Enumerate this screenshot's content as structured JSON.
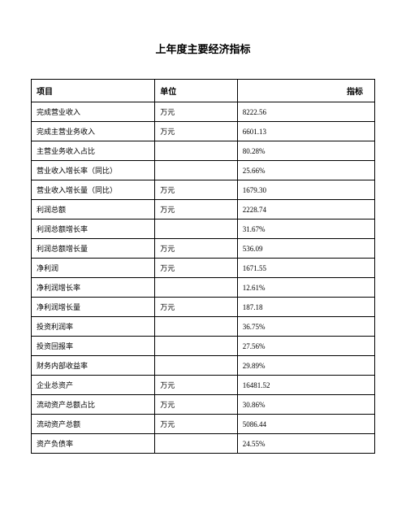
{
  "title": "上年度主要经济指标",
  "columns": [
    "项目",
    "单位",
    "指标"
  ],
  "rows": [
    {
      "item": "完成营业收入",
      "unit": "万元",
      "value": "8222.56"
    },
    {
      "item": "完成主营业务收入",
      "unit": "万元",
      "value": "6601.13"
    },
    {
      "item": "主营业务收入占比",
      "unit": "",
      "value": "80.28%"
    },
    {
      "item": "营业收入增长率（同比）",
      "unit": "",
      "value": "25.66%"
    },
    {
      "item": "营业收入增长量（同比）",
      "unit": "万元",
      "value": "1679.30"
    },
    {
      "item": "利润总额",
      "unit": "万元",
      "value": "2228.74"
    },
    {
      "item": "利润总额增长率",
      "unit": "",
      "value": "31.67%"
    },
    {
      "item": "利润总额增长量",
      "unit": "万元",
      "value": "536.09"
    },
    {
      "item": "净利润",
      "unit": "万元",
      "value": "1671.55"
    },
    {
      "item": "净利润增长率",
      "unit": "",
      "value": "12.61%"
    },
    {
      "item": "净利润增长量",
      "unit": "万元",
      "value": "187.18"
    },
    {
      "item": "投资利润率",
      "unit": "",
      "value": "36.75%"
    },
    {
      "item": "投资回报率",
      "unit": "",
      "value": "27.56%"
    },
    {
      "item": "财务内部收益率",
      "unit": "",
      "value": "29.89%"
    },
    {
      "item": "企业总资产",
      "unit": "万元",
      "value": "16481.52"
    },
    {
      "item": "流动资产总额占比",
      "unit": "万元",
      "value": "30.86%"
    },
    {
      "item": "流动资产总额",
      "unit": "万元",
      "value": "5086.44"
    },
    {
      "item": "资产负债率",
      "unit": "",
      "value": "24.55%"
    }
  ]
}
